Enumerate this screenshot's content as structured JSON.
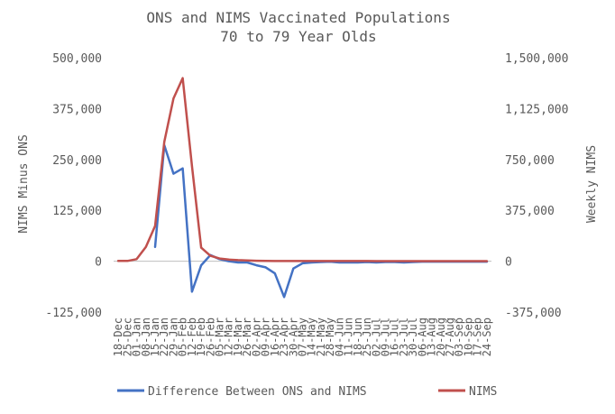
{
  "chart_data": {
    "type": "line",
    "title": "ONS and NIMS Vaccinated Populations",
    "subtitle": "70 to 79 Year Olds",
    "ylabel_left": "NIMS Minus ONS",
    "ylabel_right": "Weekly NIMS",
    "y_left": {
      "min": -125000,
      "max": 500000,
      "ticks": [
        -125000,
        0,
        125000,
        250000,
        375000,
        500000
      ],
      "tick_labels": [
        "-125,000",
        "0",
        "125,000",
        "250,000",
        "375,000",
        "500,000"
      ]
    },
    "y_right": {
      "min": -375000,
      "max": 1500000,
      "ticks": [
        -375000,
        0,
        375000,
        750000,
        1125000,
        1500000
      ],
      "tick_labels": [
        "-375,000",
        "0",
        "375,000",
        "750,000",
        "1,125,000",
        "1,500,000"
      ]
    },
    "categories": [
      "18-Dec",
      "25-Dec",
      "01-Jan",
      "08-Jan",
      "15-Jan",
      "22-Jan",
      "29-Jan",
      "05-Feb",
      "12-Feb",
      "19-Feb",
      "26-Feb",
      "05-Mar",
      "12-Mar",
      "19-Mar",
      "26-Mar",
      "02-Apr",
      "09-Apr",
      "16-Apr",
      "23-Apr",
      "30-Apr",
      "07-May",
      "14-May",
      "21-May",
      "28-May",
      "04-Jun",
      "11-Jun",
      "18-Jun",
      "25-Jun",
      "02-Jul",
      "09-Jul",
      "16-Jul",
      "23-Jul",
      "30-Jul",
      "06-Aug",
      "13-Aug",
      "20-Aug",
      "27-Aug",
      "03-Sep",
      "10-Sep",
      "17-Sep",
      "24-Sep"
    ],
    "series": [
      {
        "name": "Difference Between ONS and NIMS",
        "axis": "left",
        "color": "#4472C4",
        "values": [
          null,
          null,
          null,
          null,
          35000,
          285000,
          215000,
          228000,
          -75000,
          -10000,
          15000,
          5000,
          0,
          -3000,
          -3000,
          -10000,
          -15000,
          -30000,
          -88000,
          -18000,
          -5000,
          -3000,
          -2000,
          -1000,
          -3000,
          -3000,
          -3000,
          -2000,
          -3000,
          -2000,
          -2000,
          -3000,
          -2000,
          -1000,
          -1000,
          -1000,
          -1000,
          -1000,
          -1000,
          -1000,
          -1000
        ]
      },
      {
        "name": "NIMS",
        "axis": "right",
        "color": "#C0504D",
        "values": [
          2000,
          2000,
          15000,
          105000,
          260000,
          880000,
          1200000,
          1350000,
          700000,
          100000,
          40000,
          20000,
          12000,
          8000,
          6000,
          3000,
          2000,
          1000,
          1000,
          1000,
          1000,
          1000,
          1000,
          1000,
          1000,
          1000,
          1000,
          1000,
          500,
          500,
          500,
          500,
          500,
          500,
          500,
          500,
          500,
          500,
          500,
          500,
          500
        ]
      }
    ],
    "legend_position": "bottom",
    "grid": false
  }
}
